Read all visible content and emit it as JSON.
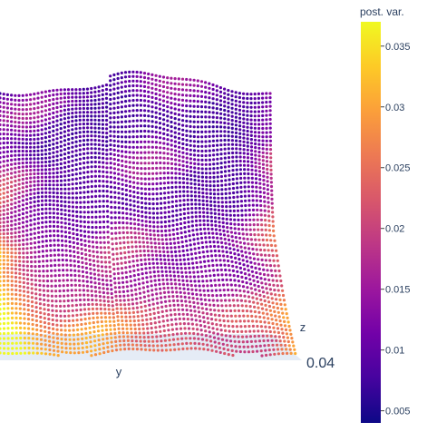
{
  "chart_data": {
    "type": "scatter",
    "subtype": "3d-surface-points",
    "title": "",
    "axes": {
      "y": {
        "label": "y"
      },
      "z": {
        "label": "z",
        "visible_tick_labels": [
          "0.04"
        ]
      }
    },
    "colorbar": {
      "title": "post. var.",
      "range": [
        0.004,
        0.037
      ],
      "tick_values": [
        0.005,
        0.01,
        0.015,
        0.02,
        0.025,
        0.03,
        0.035
      ],
      "tick_labels": [
        "0.005",
        "0.01",
        "0.015",
        "0.02",
        "0.025",
        "0.03",
        "0.035"
      ],
      "colorscale": [
        "#0d0887",
        "#46039f",
        "#7201a8",
        "#9c179e",
        "#bd3786",
        "#d8576b",
        "#ed7953",
        "#fb9f3a",
        "#fdca26",
        "#f0f921"
      ],
      "placement": "right"
    },
    "surface_color": "#e5ecf6",
    "grid": false
  }
}
